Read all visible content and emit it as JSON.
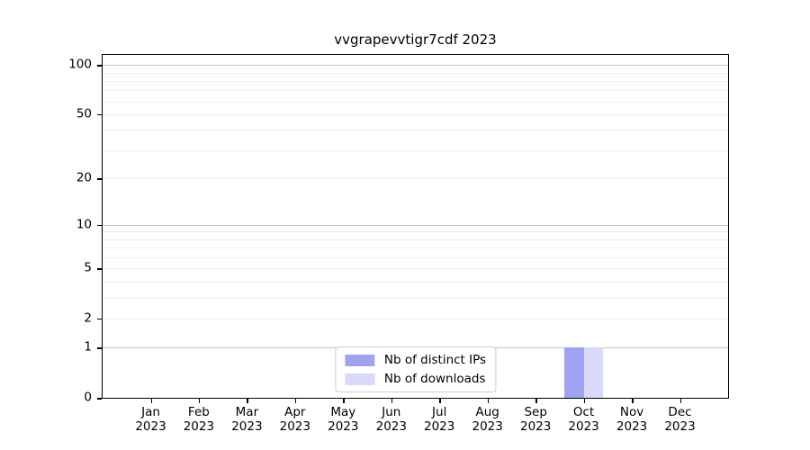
{
  "chart_data": {
    "type": "bar",
    "title": "vvgrapevvtigr7cdf 2023",
    "categories": [
      "Jan 2023",
      "Feb 2023",
      "Mar 2023",
      "Apr 2023",
      "May 2023",
      "Jun 2023",
      "Jul 2023",
      "Aug 2023",
      "Sep 2023",
      "Oct 2023",
      "Nov 2023",
      "Dec 2023"
    ],
    "series": [
      {
        "name": "Nb of distinct IPs",
        "color": "#a2a2f3",
        "values": [
          0,
          0,
          0,
          0,
          0,
          0,
          0,
          0,
          0,
          1,
          0,
          0
        ]
      },
      {
        "name": "Nb of downloads",
        "color": "#d9d9f9",
        "values": [
          0,
          0,
          0,
          0,
          0,
          0,
          0,
          0,
          0,
          1,
          0,
          0
        ]
      }
    ],
    "xlabel": "",
    "ylabel": "",
    "yscale": "log1p",
    "ymax": 115,
    "y_tick_labels": [
      0,
      1,
      2,
      5,
      10,
      20,
      50,
      100
    ],
    "y_major_gridlines": [
      1,
      10,
      100
    ],
    "y_minor_gridlines": [
      2,
      3,
      4,
      5,
      6,
      7,
      8,
      9,
      20,
      30,
      40,
      50,
      60,
      70,
      80,
      90
    ],
    "grid": true,
    "legend_position": "lower center"
  },
  "colors": {
    "background": "#ffffff",
    "axis": "#000000",
    "grid_major": "#c3c3c3",
    "grid_minor": "#efefef",
    "legend_border": "#cccccc",
    "bar_distinct_ips": "#a2a2f3",
    "bar_downloads": "#d9d9f9"
  }
}
